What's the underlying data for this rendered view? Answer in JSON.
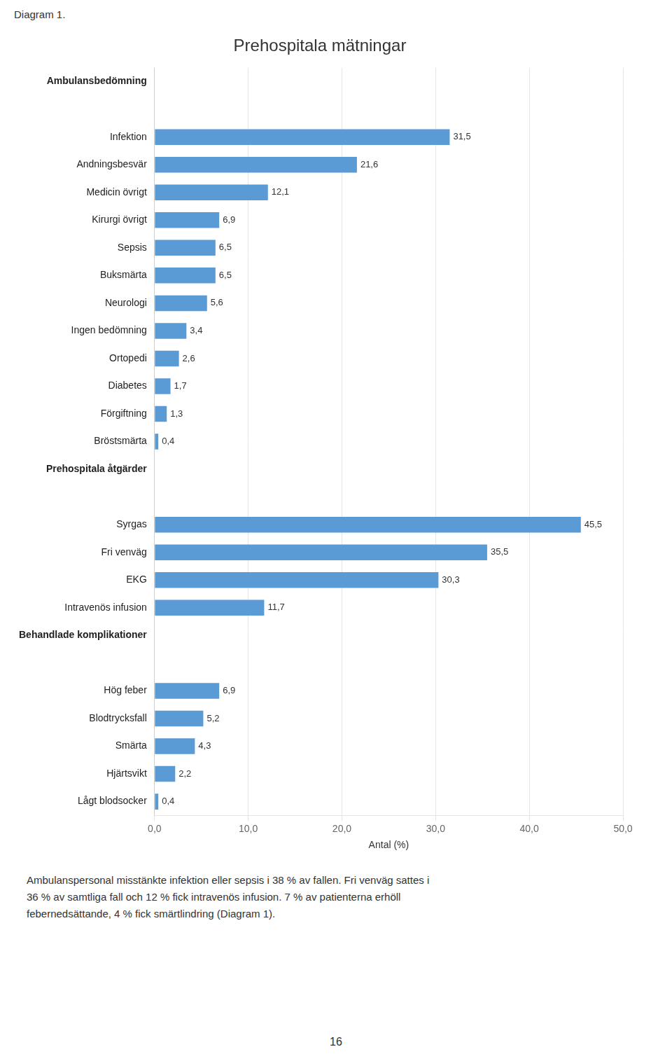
{
  "chart_data": {
    "type": "bar",
    "orientation": "horizontal",
    "title": "Prehospitala mätningar",
    "annotations": [
      "Diagram 1.",
      "Ambulanspersonal misstänkte infektion eller sepsis i 38 % av fallen. Fri venväg sattes i\n36 % av samtliga fall och 12 % fick intravenös infusion. 7 % av patienterna erhöll\nfebernedsättande, 4 % fick smärtlindring (Diagram 1).",
      "16"
    ],
    "xlabel": "Antal (%)",
    "categories": [
      "Ambulansbedömning",
      null,
      "Infektion",
      "Andningsbesvär",
      "Medicin övrigt",
      "Kirurgi övrigt",
      "Sepsis",
      "Buksmärta",
      "Neurologi",
      "Ingen bedömning",
      "Ortopedi",
      "Diabetes",
      "Förgiftning",
      "Bröstsmärta",
      "Prehospitala åtgärder",
      null,
      "Syrgas",
      "Fri venväg",
      "EKG",
      "Intravenös infusion",
      "Behandlade komplikationer",
      null,
      "Hög feber",
      "Blodtrycksfall",
      "Smärta",
      "Hjärtsvikt",
      "Lågt blodsocker"
    ],
    "values": [
      null,
      null,
      31.5,
      21.6,
      12.1,
      6.9,
      6.5,
      6.5,
      5.6,
      3.4,
      2.6,
      1.7,
      1.3,
      0.4,
      null,
      null,
      45.5,
      35.5,
      30.3,
      11.7,
      null,
      null,
      6.9,
      5.2,
      4.3,
      2.2,
      0.4
    ],
    "value_labels": [
      "",
      "",
      "31,5",
      "21,6",
      "12,1",
      "6,9",
      "6,5",
      "6,5",
      "5,6",
      "3,4",
      "2,6",
      "1,7",
      "1,3",
      "0,4",
      "",
      "",
      "45,5",
      "35,5",
      "30,3",
      "11,7",
      "",
      "",
      "6,9",
      "5,2",
      "4,3",
      "2,2",
      "0,4"
    ],
    "data_labels": true,
    "color": "#5b9bd5",
    "xlim": [
      0,
      50
    ],
    "xticks": [
      {
        "value": 0,
        "label": "0,0"
      },
      {
        "value": 10,
        "label": "10,0"
      },
      {
        "value": 20,
        "label": "20,0"
      },
      {
        "value": 30,
        "label": "30,0"
      },
      {
        "value": 40,
        "label": "40,0"
      },
      {
        "value": 50,
        "label": "50,0"
      }
    ],
    "grid": true
  }
}
